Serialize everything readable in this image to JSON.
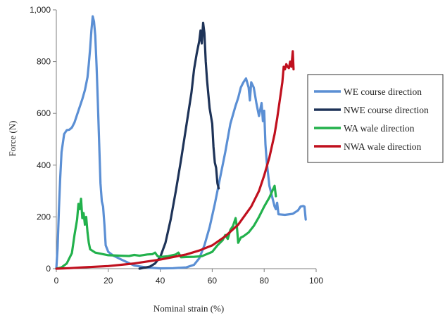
{
  "chart_data": {
    "type": "line",
    "xlabel": "Nominal strain (%)",
    "ylabel": "Force (N)",
    "xlim": [
      0,
      100
    ],
    "ylim": [
      0,
      1000
    ],
    "x_ticks": [
      0,
      20,
      40,
      60,
      80,
      100
    ],
    "y_ticks": [
      0,
      200,
      400,
      600,
      800,
      1000
    ],
    "y_tick_labels": [
      "0",
      "200",
      "400",
      "600",
      "800",
      "1,000"
    ],
    "grid": false,
    "legend_position": "right",
    "series": [
      {
        "name": "WE course direction",
        "color": "#5b8fd4",
        "points": [
          [
            0,
            0
          ],
          [
            0.5,
            80
          ],
          [
            1,
            230
          ],
          [
            1.5,
            350
          ],
          [
            2,
            450
          ],
          [
            3,
            520
          ],
          [
            4,
            535
          ],
          [
            5,
            537
          ],
          [
            6,
            545
          ],
          [
            7,
            565
          ],
          [
            8,
            595
          ],
          [
            9,
            625
          ],
          [
            10,
            655
          ],
          [
            11,
            690
          ],
          [
            12,
            740
          ],
          [
            12.5,
            790
          ],
          [
            13,
            850
          ],
          [
            13.5,
            920
          ],
          [
            14,
            975
          ],
          [
            14.5,
            955
          ],
          [
            15,
            900
          ],
          [
            15.5,
            780
          ],
          [
            16,
            640
          ],
          [
            16.5,
            480
          ],
          [
            17,
            330
          ],
          [
            17.5,
            260
          ],
          [
            18,
            240
          ],
          [
            18.5,
            170
          ],
          [
            19,
            90
          ],
          [
            20,
            65
          ],
          [
            22,
            50
          ],
          [
            25,
            35
          ],
          [
            30,
            12
          ],
          [
            35,
            4
          ],
          [
            40,
            1
          ],
          [
            45,
            2
          ],
          [
            50,
            5
          ],
          [
            53,
            15
          ],
          [
            55,
            40
          ],
          [
            57,
            90
          ],
          [
            59,
            160
          ],
          [
            61,
            250
          ],
          [
            63,
            350
          ],
          [
            65,
            450
          ],
          [
            67,
            560
          ],
          [
            69,
            630
          ],
          [
            70,
            660
          ],
          [
            71,
            700
          ],
          [
            72,
            720
          ],
          [
            73,
            735
          ],
          [
            74,
            700
          ],
          [
            74.5,
            650
          ],
          [
            75,
            720
          ],
          [
            76,
            700
          ],
          [
            77,
            640
          ],
          [
            78,
            590
          ],
          [
            79,
            640
          ],
          [
            79.5,
            570
          ],
          [
            80,
            610
          ],
          [
            80.5,
            480
          ],
          [
            81,
            410
          ],
          [
            82,
            320
          ],
          [
            83,
            280
          ],
          [
            84,
            240
          ],
          [
            84.5,
            230
          ],
          [
            85,
            255
          ],
          [
            85.5,
            210
          ],
          [
            88,
            208
          ],
          [
            91,
            212
          ],
          [
            93,
            225
          ],
          [
            94,
            240
          ],
          [
            95,
            242
          ],
          [
            95.5,
            240
          ],
          [
            96,
            190
          ]
        ]
      },
      {
        "name": "NWE course direction",
        "color": "#1e3358",
        "points": [
          [
            32,
            0
          ],
          [
            36,
            8
          ],
          [
            38,
            20
          ],
          [
            40,
            45
          ],
          [
            42,
            100
          ],
          [
            44,
            190
          ],
          [
            46,
            300
          ],
          [
            48,
            420
          ],
          [
            50,
            550
          ],
          [
            52,
            680
          ],
          [
            53,
            770
          ],
          [
            54,
            830
          ],
          [
            55,
            880
          ],
          [
            55.5,
            920
          ],
          [
            56,
            870
          ],
          [
            56.5,
            950
          ],
          [
            57,
            910
          ],
          [
            57.5,
            800
          ],
          [
            58,
            730
          ],
          [
            59,
            620
          ],
          [
            60,
            560
          ],
          [
            60.5,
            470
          ],
          [
            61,
            410
          ],
          [
            61.5,
            390
          ],
          [
            62,
            330
          ],
          [
            62.5,
            310
          ]
        ]
      },
      {
        "name": "WA wale direction",
        "color": "#22b14c",
        "points": [
          [
            0,
            0
          ],
          [
            2,
            5
          ],
          [
            4,
            20
          ],
          [
            6,
            60
          ],
          [
            7,
            130
          ],
          [
            8,
            190
          ],
          [
            8.5,
            250
          ],
          [
            9,
            230
          ],
          [
            9.5,
            270
          ],
          [
            10,
            195
          ],
          [
            10.5,
            215
          ],
          [
            11,
            170
          ],
          [
            11.5,
            200
          ],
          [
            12,
            140
          ],
          [
            12.5,
            100
          ],
          [
            13,
            75
          ],
          [
            15,
            62
          ],
          [
            18,
            56
          ],
          [
            20,
            52
          ],
          [
            25,
            50
          ],
          [
            28,
            49
          ],
          [
            30,
            53
          ],
          [
            32,
            50
          ],
          [
            35,
            55
          ],
          [
            37,
            56
          ],
          [
            38,
            62
          ],
          [
            39,
            48
          ],
          [
            40,
            45
          ],
          [
            43,
            48
          ],
          [
            46,
            55
          ],
          [
            47,
            62
          ],
          [
            48,
            44
          ],
          [
            50,
            45
          ],
          [
            53,
            46
          ],
          [
            56,
            48
          ],
          [
            60,
            65
          ],
          [
            62,
            90
          ],
          [
            64,
            110
          ],
          [
            65,
            130
          ],
          [
            66,
            115
          ],
          [
            67,
            150
          ],
          [
            68,
            165
          ],
          [
            69,
            195
          ],
          [
            69.5,
            160
          ],
          [
            70,
            100
          ],
          [
            71,
            120
          ],
          [
            72,
            125
          ],
          [
            74,
            140
          ],
          [
            76,
            165
          ],
          [
            78,
            200
          ],
          [
            80,
            240
          ],
          [
            82,
            275
          ],
          [
            84,
            320
          ],
          [
            84.5,
            280
          ]
        ]
      },
      {
        "name": "NWA wale direction",
        "color": "#c0101e",
        "points": [
          [
            0,
            0
          ],
          [
            5,
            2
          ],
          [
            10,
            5
          ],
          [
            20,
            10
          ],
          [
            30,
            20
          ],
          [
            40,
            35
          ],
          [
            45,
            45
          ],
          [
            50,
            55
          ],
          [
            55,
            70
          ],
          [
            60,
            90
          ],
          [
            65,
            125
          ],
          [
            70,
            170
          ],
          [
            75,
            240
          ],
          [
            78,
            300
          ],
          [
            80,
            360
          ],
          [
            82,
            430
          ],
          [
            84,
            520
          ],
          [
            85,
            580
          ],
          [
            86,
            650
          ],
          [
            87,
            720
          ],
          [
            87.5,
            780
          ],
          [
            88,
            770
          ],
          [
            88.5,
            790
          ],
          [
            89,
            780
          ],
          [
            89.5,
            775
          ],
          [
            90,
            800
          ],
          [
            90.5,
            780
          ],
          [
            91,
            840
          ],
          [
            91.3,
            770
          ]
        ]
      }
    ]
  }
}
